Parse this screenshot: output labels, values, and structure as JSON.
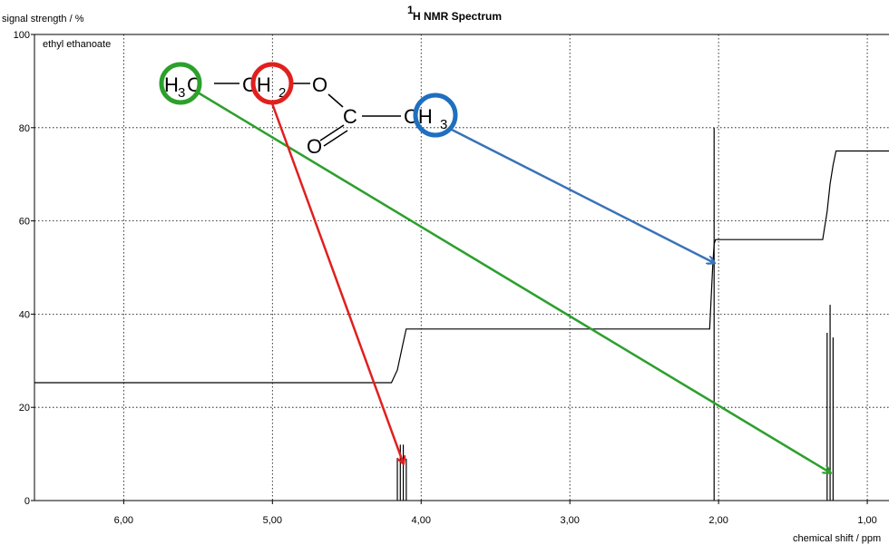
{
  "chart_data": {
    "type": "line",
    "title_sup": "1",
    "title": "H NMR Spectrum",
    "ylabel": "signal strength / %",
    "xlabel": "chemical shift / ppm",
    "sample_label": "ethyl ethanoate",
    "xlim": [
      6.6,
      0.0
    ],
    "ylim": [
      0,
      100
    ],
    "x_ticks": [
      6.0,
      5.0,
      4.0,
      3.0,
      2.0,
      1.0
    ],
    "x_tick_labels": [
      "6,00",
      "5,00",
      "4,00",
      "3,00",
      "2,00",
      "1,00"
    ],
    "y_ticks": [
      0,
      20,
      40,
      60,
      80,
      100
    ],
    "y_tick_labels": [
      "0",
      "20",
      "40",
      "60",
      "80",
      "100"
    ],
    "grid": true,
    "peaks": [
      {
        "ppm": 4.16,
        "height": 9
      },
      {
        "ppm": 4.14,
        "height": 12
      },
      {
        "ppm": 4.12,
        "height": 12
      },
      {
        "ppm": 4.1,
        "height": 9
      },
      {
        "ppm": 2.03,
        "height": 80
      },
      {
        "ppm": 1.27,
        "height": 36
      },
      {
        "ppm": 1.25,
        "height": 42
      },
      {
        "ppm": 1.23,
        "height": 35
      }
    ],
    "integration_curve": [
      [
        6.6,
        25.3
      ],
      [
        4.2,
        25.3
      ],
      [
        4.16,
        28
      ],
      [
        4.14,
        31
      ],
      [
        4.12,
        34
      ],
      [
        4.1,
        36.8
      ],
      [
        2.06,
        36.8
      ],
      [
        2.04,
        50
      ],
      [
        2.03,
        55
      ],
      [
        2.02,
        56
      ],
      [
        1.3,
        56
      ],
      [
        1.27,
        62
      ],
      [
        1.25,
        68
      ],
      [
        1.23,
        72
      ],
      [
        1.21,
        75
      ],
      [
        0.0,
        75
      ]
    ],
    "structure": {
      "atoms": [
        "H",
        "3",
        "C",
        "CH",
        "2",
        "O",
        "C",
        "O",
        "CH",
        "3"
      ]
    },
    "annotations": [
      {
        "group": "CH3 (ethyl)",
        "color": "#2ca02c",
        "target_ppm": 1.25,
        "target_height": 6
      },
      {
        "group": "CH2",
        "color": "#e0201e",
        "target_ppm": 4.12,
        "target_height": 8
      },
      {
        "group": "CH3 (acetyl)",
        "color": "#3a72b8",
        "target_ppm": 2.03,
        "target_height": 51
      }
    ]
  }
}
